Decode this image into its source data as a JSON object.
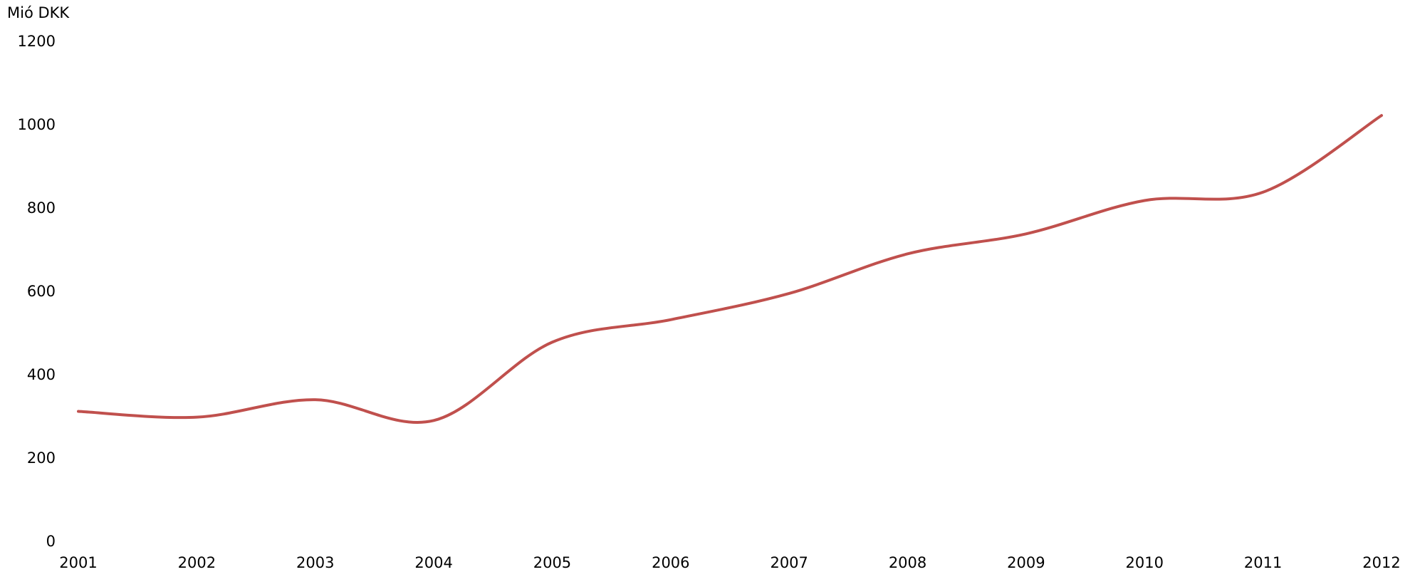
{
  "chart_data": {
    "type": "line",
    "title": "",
    "xlabel": "",
    "ylabel": "Mió DKK",
    "x": [
      "2001",
      "2002",
      "2003",
      "2004",
      "2005",
      "2006",
      "2007",
      "2008",
      "2009",
      "2010",
      "2011",
      "2012"
    ],
    "series": [
      {
        "values": [
          312,
          298,
          340,
          290,
          478,
          532,
          595,
          690,
          738,
          818,
          838,
          1022
        ],
        "color": "#c0504d"
      }
    ],
    "ylim": [
      0,
      1200
    ],
    "yticks": [
      0,
      200,
      400,
      600,
      800,
      1000,
      1200
    ],
    "grid": false,
    "legend": "none"
  }
}
